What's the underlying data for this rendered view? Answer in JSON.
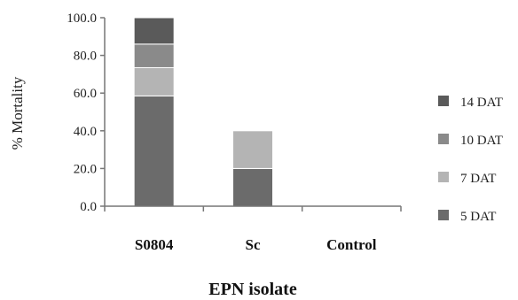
{
  "chart_data": {
    "type": "bar",
    "stacked": true,
    "title": "",
    "xlabel": "EPN isolate",
    "ylabel": "% Mortality",
    "ylim": [
      0,
      100
    ],
    "yticks": [
      "0.0",
      "20.0",
      "40.0",
      "60.0",
      "80.0",
      "100.0"
    ],
    "categories": [
      "S0804",
      "Sc",
      "Control"
    ],
    "series": [
      {
        "name": "5 DAT",
        "color": "#6b6b6b",
        "values": [
          58.5,
          20.0,
          0
        ]
      },
      {
        "name": "7 DAT",
        "color": "#b4b4b4",
        "values": [
          15.0,
          20.0,
          0
        ]
      },
      {
        "name": "10 DAT",
        "color": "#8a8a8a",
        "values": [
          12.5,
          0,
          0
        ]
      },
      {
        "name": "14 DAT",
        "color": "#5a5a5a",
        "values": [
          14.0,
          0,
          0
        ]
      }
    ],
    "legend_order": [
      "14 DAT",
      "10 DAT",
      "7 DAT",
      "5 DAT"
    ],
    "legend_position": "right",
    "grid": false
  }
}
